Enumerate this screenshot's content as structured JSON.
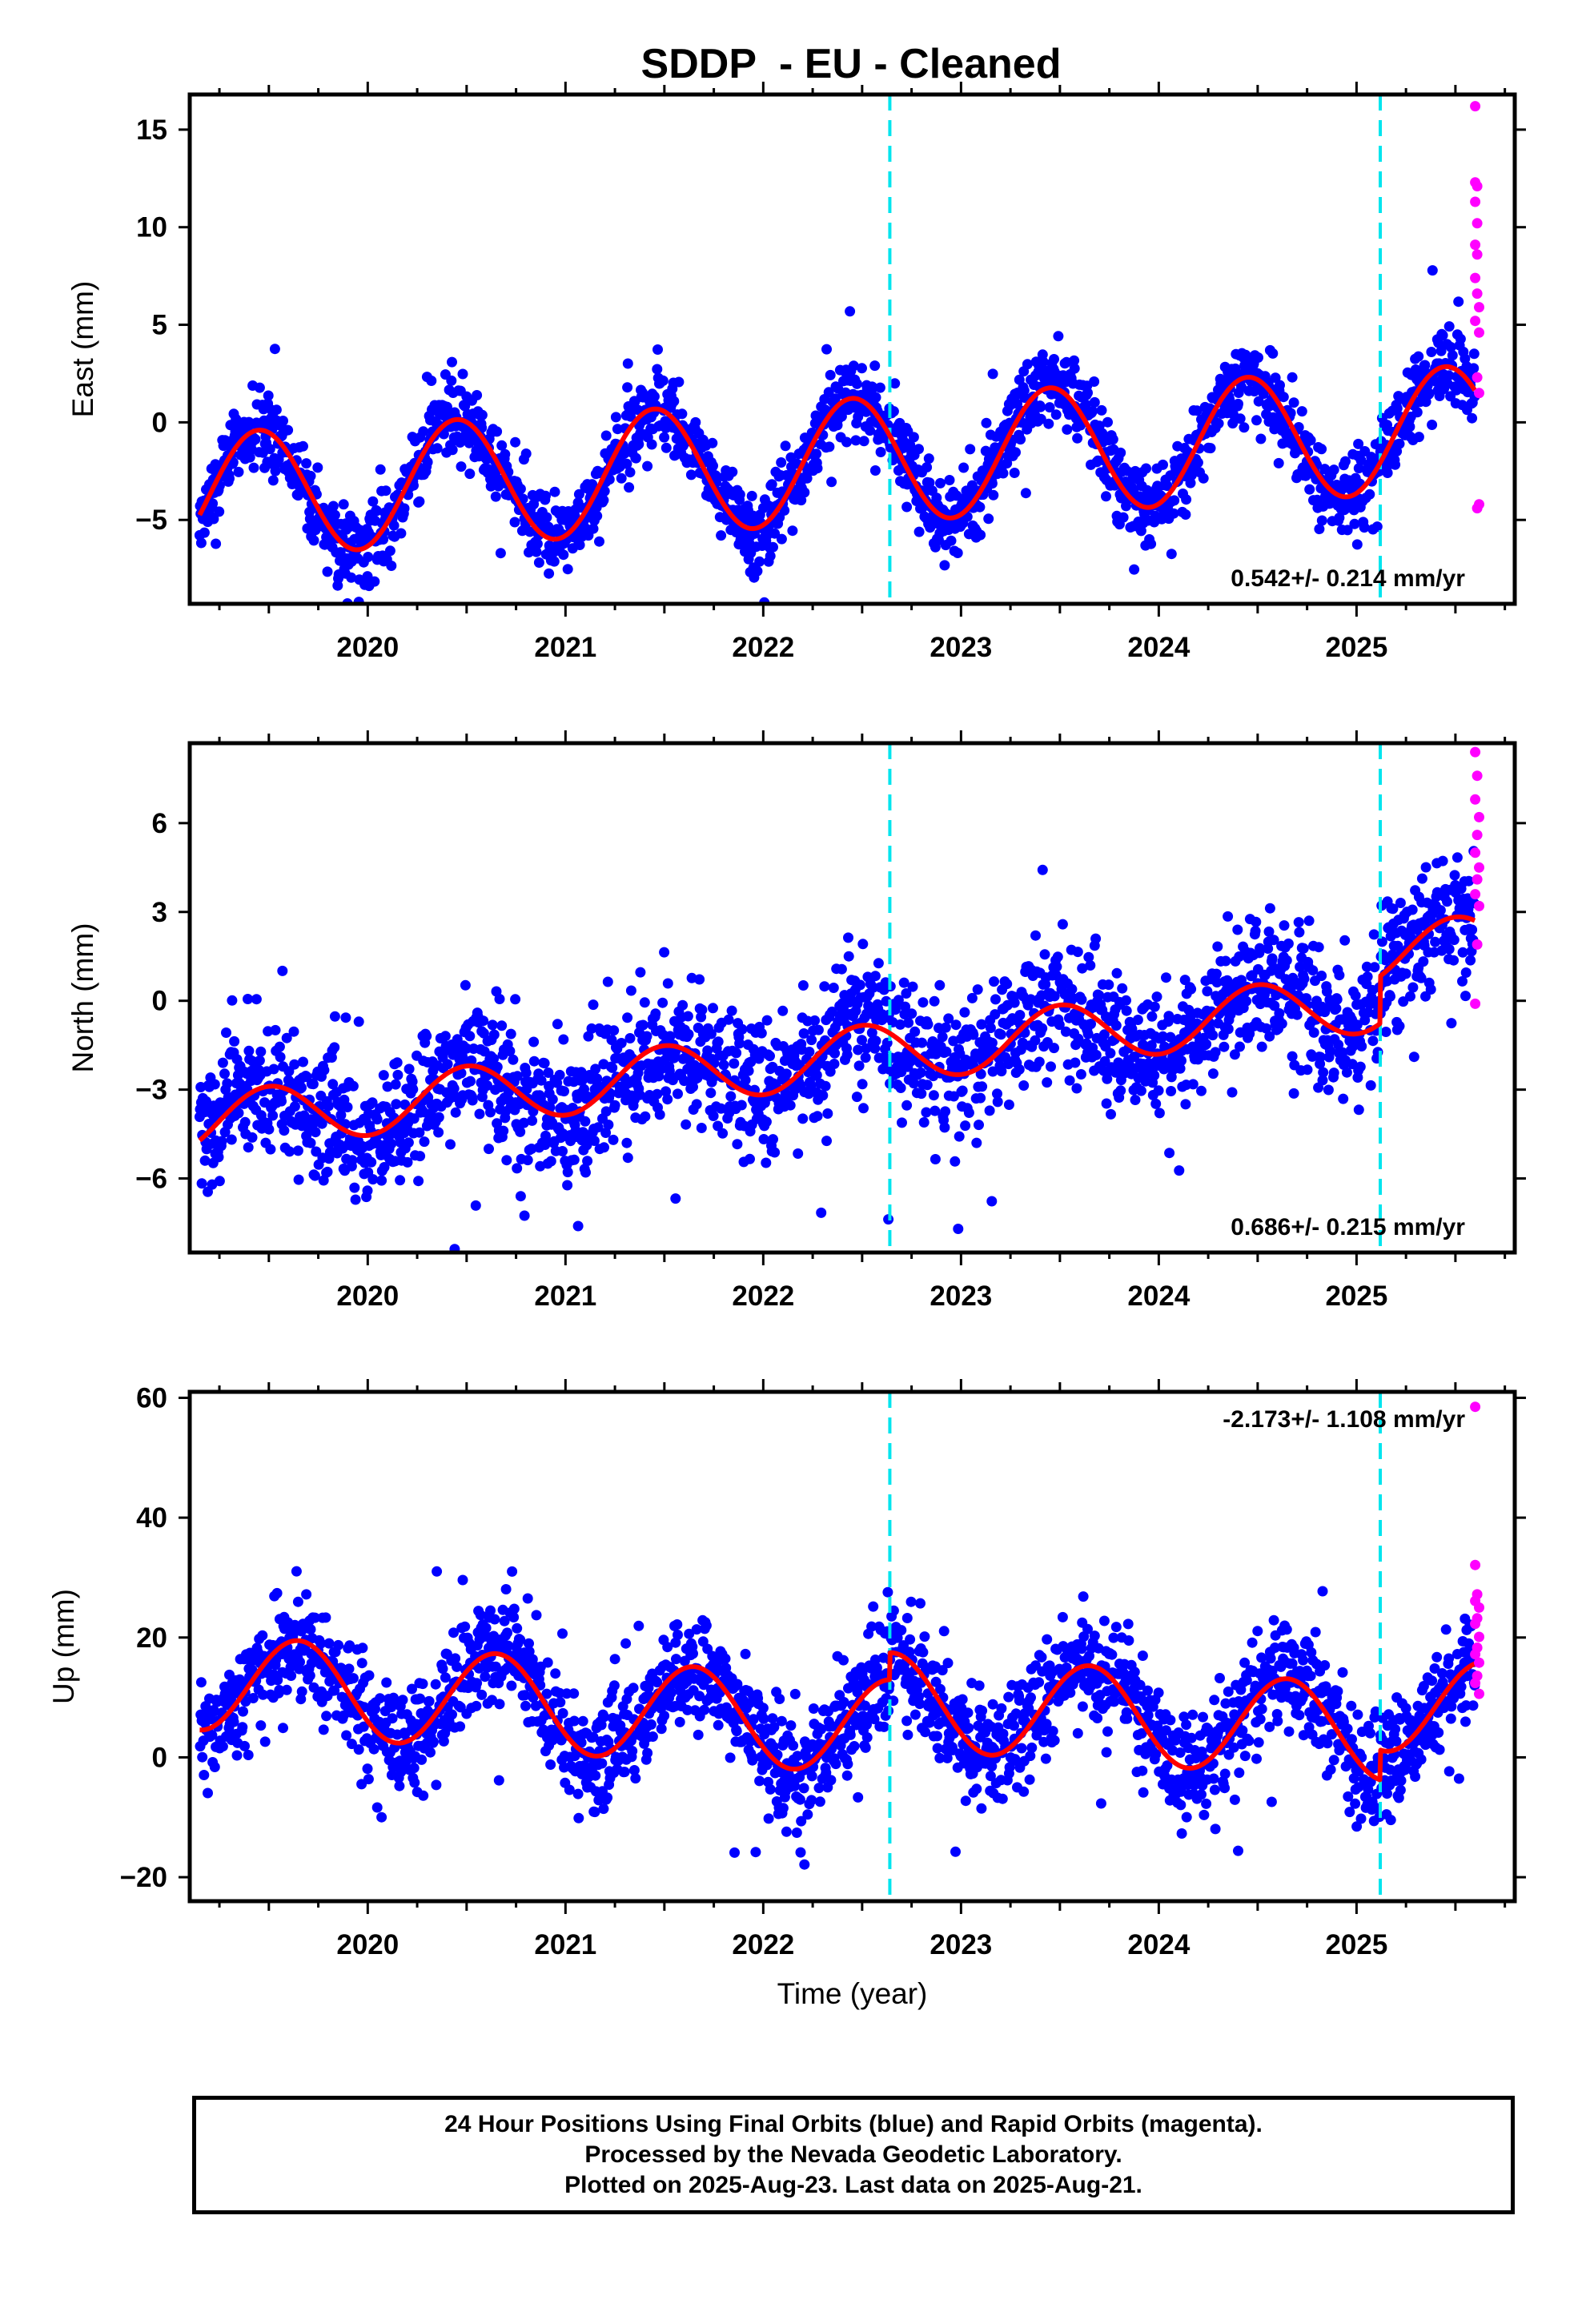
{
  "title": "SDDP  - EU - Cleaned",
  "footer": {
    "line1": "24 Hour Positions Using Final Orbits (blue) and Rapid Orbits (magenta).",
    "line2": "Processed by the Nevada Geodetic Laboratory.",
    "line3": "Plotted on 2025-Aug-23. Last data on 2025-Aug-21."
  },
  "colors": {
    "final": "#0000ff",
    "rapid": "#ff00ff",
    "model": "#ff0000",
    "equipment_change": "#00e5ee",
    "frame": "#000000"
  },
  "chart_data": [
    {
      "type": "scatter",
      "component": "east",
      "ylabel": "East (mm)",
      "xlabel": "",
      "xlim": [
        2019.1,
        2025.8
      ],
      "ylim": [
        -9.3,
        16.8
      ],
      "yticks": [
        -5,
        0,
        5,
        10,
        15
      ],
      "yticklabels": [
        "−5",
        "0",
        "5",
        "10",
        "15"
      ],
      "xticks": [
        2020,
        2021,
        2022,
        2023,
        2024,
        2025
      ],
      "xticklabels": [
        "2020",
        "2021",
        "2022",
        "2023",
        "2024",
        "2025"
      ],
      "rate_label": "0.542+/- 0.214 mm/yr",
      "rate_position": "bottom-right",
      "equipment_changes": [
        2022.64,
        2025.12
      ],
      "model": {
        "rate": 0.542,
        "offset": -2.0,
        "annual_amplitude": 3.2,
        "annual_peak": 2019.45,
        "steps": []
      },
      "final_orbits": {
        "start": 2019.15,
        "end": 2025.6,
        "scatter": 1.0
      },
      "rapid_orbits": {
        "x": [
          2025.6,
          2025.6,
          2025.61,
          2025.6,
          2025.61,
          2025.6,
          2025.61,
          2025.6,
          2025.61,
          2025.62,
          2025.6,
          2025.62,
          2025.61,
          2025.62,
          2025.61,
          2025.62
        ],
        "y": [
          16.2,
          12.3,
          12.1,
          11.3,
          10.2,
          9.1,
          8.6,
          7.4,
          6.6,
          5.9,
          5.2,
          4.6,
          2.3,
          1.5,
          -4.4,
          -4.2
        ]
      }
    },
    {
      "type": "scatter",
      "component": "north",
      "ylabel": "North (mm)",
      "xlabel": "",
      "xlim": [
        2019.1,
        2025.8
      ],
      "ylim": [
        -8.5,
        8.7
      ],
      "yticks": [
        -6,
        -3,
        0,
        3,
        6
      ],
      "yticklabels": [
        "−6",
        "−3",
        "0",
        "3",
        "6"
      ],
      "xticks": [
        2020,
        2021,
        2022,
        2023,
        2024,
        2025
      ],
      "xticklabels": [
        "2020",
        "2021",
        "2022",
        "2023",
        "2024",
        "2025"
      ],
      "rate_label": "0.686+/- 0.215 mm/yr",
      "rate_position": "bottom-right",
      "equipment_changes": [
        2022.64,
        2025.12
      ],
      "model": {
        "rate": 0.686,
        "offset": -1.9,
        "annual_amplitude": 1.0,
        "annual_peak": 2019.5,
        "steps": [
          [
            2025.12,
            1.6
          ]
        ]
      },
      "final_orbits": {
        "start": 2019.15,
        "end": 2025.6,
        "scatter": 1.1
      },
      "rapid_orbits": {
        "x": [
          2025.6,
          2025.61,
          2025.6,
          2025.62,
          2025.61,
          2025.6,
          2025.62,
          2025.61,
          2025.6,
          2025.62,
          2025.61,
          2025.6
        ],
        "y": [
          8.4,
          7.6,
          6.8,
          6.2,
          5.6,
          5.0,
          4.5,
          4.1,
          3.6,
          3.2,
          1.9,
          -0.1
        ]
      }
    },
    {
      "type": "scatter",
      "component": "up",
      "ylabel": "Up (mm)",
      "xlabel": "Time (year)",
      "xlim": [
        2019.1,
        2025.8
      ],
      "ylim": [
        -24,
        61
      ],
      "yticks": [
        -20,
        0,
        20,
        40,
        60
      ],
      "yticklabels": [
        "−20",
        "0",
        "20",
        "40",
        "60"
      ],
      "xticks": [
        2020,
        2021,
        2022,
        2023,
        2024,
        2025
      ],
      "xticklabels": [
        "2020",
        "2021",
        "2022",
        "2023",
        "2024",
        "2025"
      ],
      "rate_label": "-2.173+/- 1.108 mm/yr",
      "rate_position": "top-right",
      "equipment_changes": [
        2022.64,
        2025.12
      ],
      "model": {
        "rate": -2.173,
        "offset": 5.5,
        "annual_amplitude": 8.0,
        "annual_peak": 2019.65,
        "steps": [
          [
            2022.64,
            4.5
          ],
          [
            2025.12,
            5.0
          ]
        ]
      },
      "final_orbits": {
        "start": 2019.15,
        "end": 2025.6,
        "scatter": 4.5
      },
      "rapid_orbits": {
        "x": [
          2025.6,
          2025.6,
          2025.61,
          2025.6,
          2025.62,
          2025.61,
          2025.6,
          2025.62,
          2025.61,
          2025.6,
          2025.62,
          2025.61,
          2025.6,
          2025.62
        ],
        "y": [
          58.5,
          32.1,
          27.2,
          26.1,
          25.0,
          23.2,
          22.3,
          20.1,
          18.3,
          17.2,
          15.8,
          13.6,
          12.4,
          10.6
        ]
      }
    }
  ]
}
